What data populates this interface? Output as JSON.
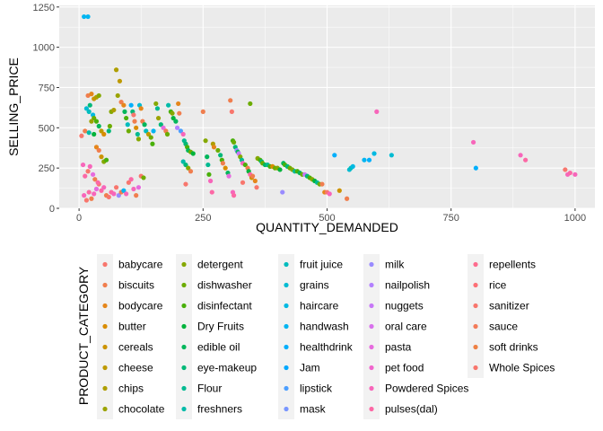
{
  "chart_data": {
    "type": "scatter",
    "title": "",
    "xlabel": "QUANTITY_DEMANDED",
    "ylabel": "SELLING_PRICE",
    "xlim": [
      -40,
      1040
    ],
    "ylim": [
      0,
      1260
    ],
    "xticks": [
      0,
      250,
      500,
      750,
      1000
    ],
    "yticks": [
      0,
      250,
      500,
      750,
      1000,
      1250
    ],
    "grid": true,
    "legend": {
      "title": "PRODUCT_CATEGORY",
      "placement": "bottom",
      "entries": [
        {
          "name": "babycare",
          "color": "#F8766D"
        },
        {
          "name": "biscuits",
          "color": "#F07E4E"
        },
        {
          "name": "bodycare",
          "color": "#E5861B"
        },
        {
          "name": "butter",
          "color": "#D98C00"
        },
        {
          "name": "cereals",
          "color": "#CC9300"
        },
        {
          "name": "cheese",
          "color": "#BE9900"
        },
        {
          "name": "chips",
          "color": "#AE9E00"
        },
        {
          "name": "chocolate",
          "color": "#9BA300"
        },
        {
          "name": "detergent",
          "color": "#85A800"
        },
        {
          "name": "dishwasher",
          "color": "#6CAC00"
        },
        {
          "name": "disinfectant",
          "color": "#49B00A"
        },
        {
          "name": "Dry Fruits",
          "color": "#00B33C"
        },
        {
          "name": "edible oil",
          "color": "#00B65B"
        },
        {
          "name": "eye-makeup",
          "color": "#00B877"
        },
        {
          "name": "Flour",
          "color": "#00BA91"
        },
        {
          "name": "freshners",
          "color": "#00BBA9"
        },
        {
          "name": "fruit juice",
          "color": "#00BCBE"
        },
        {
          "name": "grains",
          "color": "#00BBD2"
        },
        {
          "name": "haircare",
          "color": "#00B9E2"
        },
        {
          "name": "handwash",
          "color": "#00B5F1"
        },
        {
          "name": "healthdrink",
          "color": "#00AFFC"
        },
        {
          "name": "Jam",
          "color": "#00A8FF"
        },
        {
          "name": "lipstick",
          "color": "#4C9FFF"
        },
        {
          "name": "mask",
          "color": "#7996FF"
        },
        {
          "name": "milk",
          "color": "#998BFF"
        },
        {
          "name": "nailpolish",
          "color": "#B381FF"
        },
        {
          "name": "nuggets",
          "color": "#C778F7"
        },
        {
          "name": "oral care",
          "color": "#D871EC"
        },
        {
          "name": "pasta",
          "color": "#E66BDE"
        },
        {
          "name": "pet food",
          "color": "#F066CD"
        },
        {
          "name": "Powdered Spices",
          "color": "#F766BA"
        },
        {
          "name": "pulses(dal)",
          "color": "#FC68A5"
        },
        {
          "name": "repellents",
          "color": "#FE6C8E"
        },
        {
          "name": "rice",
          "color": "#FD7076"
        },
        {
          "name": "sanitizer",
          "color": "#F8766D"
        },
        {
          "name": "sauce",
          "color": "#F37B59"
        },
        {
          "name": "soft drinks",
          "color": "#EE8044"
        },
        {
          "name": "Whole Spices",
          "color": "#F8766D"
        }
      ]
    },
    "points": [
      {
        "x": 10,
        "y": 1190,
        "color": "#00B5F1"
      },
      {
        "x": 18,
        "y": 1190,
        "color": "#00B5F1"
      },
      {
        "x": 5,
        "y": 450,
        "color": "#F8766D"
      },
      {
        "x": 12,
        "y": 480,
        "color": "#F07E4E"
      },
      {
        "x": 18,
        "y": 700,
        "color": "#F07E4E"
      },
      {
        "x": 25,
        "y": 710,
        "color": "#E5861B"
      },
      {
        "x": 30,
        "y": 680,
        "color": "#CC9300"
      },
      {
        "x": 35,
        "y": 690,
        "color": "#AE9E00"
      },
      {
        "x": 40,
        "y": 700,
        "color": "#85A800"
      },
      {
        "x": 15,
        "y": 620,
        "color": "#00BBD2"
      },
      {
        "x": 20,
        "y": 600,
        "color": "#00BCBE"
      },
      {
        "x": 22,
        "y": 640,
        "color": "#00B877"
      },
      {
        "x": 28,
        "y": 580,
        "color": "#00B9E2"
      },
      {
        "x": 30,
        "y": 560,
        "color": "#6CAC00"
      },
      {
        "x": 35,
        "y": 540,
        "color": "#49B00A"
      },
      {
        "x": 25,
        "y": 540,
        "color": "#9BA300"
      },
      {
        "x": 40,
        "y": 510,
        "color": "#00B65B"
      },
      {
        "x": 45,
        "y": 480,
        "color": "#BE9900"
      },
      {
        "x": 50,
        "y": 460,
        "color": "#D98C00"
      },
      {
        "x": 20,
        "y": 470,
        "color": "#00BBA9"
      },
      {
        "x": 30,
        "y": 460,
        "color": "#00B33C"
      },
      {
        "x": 35,
        "y": 380,
        "color": "#E5861B"
      },
      {
        "x": 40,
        "y": 360,
        "color": "#F07E4E"
      },
      {
        "x": 45,
        "y": 320,
        "color": "#CC9300"
      },
      {
        "x": 50,
        "y": 290,
        "color": "#85A800"
      },
      {
        "x": 55,
        "y": 300,
        "color": "#49B00A"
      },
      {
        "x": 60,
        "y": 480,
        "color": "#00B877"
      },
      {
        "x": 62,
        "y": 510,
        "color": "#6CAC00"
      },
      {
        "x": 65,
        "y": 600,
        "color": "#85A800"
      },
      {
        "x": 70,
        "y": 610,
        "color": "#AE9E00"
      },
      {
        "x": 75,
        "y": 860,
        "color": "#AE9E00"
      },
      {
        "x": 78,
        "y": 700,
        "color": "#9BA300"
      },
      {
        "x": 82,
        "y": 790,
        "color": "#BE9900"
      },
      {
        "x": 85,
        "y": 660,
        "color": "#F07E4E"
      },
      {
        "x": 90,
        "y": 640,
        "color": "#E5861B"
      },
      {
        "x": 92,
        "y": 600,
        "color": "#00B65B"
      },
      {
        "x": 95,
        "y": 560,
        "color": "#49B00A"
      },
      {
        "x": 98,
        "y": 520,
        "color": "#00BCBE"
      },
      {
        "x": 100,
        "y": 480,
        "color": "#6CAC00"
      },
      {
        "x": 105,
        "y": 640,
        "color": "#00AFFC"
      },
      {
        "x": 108,
        "y": 600,
        "color": "#00B877"
      },
      {
        "x": 110,
        "y": 580,
        "color": "#F8766D"
      },
      {
        "x": 112,
        "y": 540,
        "color": "#F07E4E"
      },
      {
        "x": 115,
        "y": 500,
        "color": "#D98C00"
      },
      {
        "x": 118,
        "y": 460,
        "color": "#00BA91"
      },
      {
        "x": 120,
        "y": 430,
        "color": "#85A800"
      },
      {
        "x": 122,
        "y": 640,
        "color": "#00BBD2"
      },
      {
        "x": 125,
        "y": 620,
        "color": "#E5861B"
      },
      {
        "x": 128,
        "y": 540,
        "color": "#F07E4E"
      },
      {
        "x": 132,
        "y": 520,
        "color": "#00B65B"
      },
      {
        "x": 135,
        "y": 480,
        "color": "#00BCBE"
      },
      {
        "x": 140,
        "y": 460,
        "color": "#BE9900"
      },
      {
        "x": 145,
        "y": 440,
        "color": "#6CAC00"
      },
      {
        "x": 148,
        "y": 400,
        "color": "#49B00A"
      },
      {
        "x": 150,
        "y": 480,
        "color": "#00B5F1"
      },
      {
        "x": 155,
        "y": 650,
        "color": "#85A800"
      },
      {
        "x": 158,
        "y": 620,
        "color": "#00BA91"
      },
      {
        "x": 160,
        "y": 560,
        "color": "#9BA300"
      },
      {
        "x": 165,
        "y": 520,
        "color": "#00B877"
      },
      {
        "x": 170,
        "y": 500,
        "color": "#E66BDE"
      },
      {
        "x": 175,
        "y": 480,
        "color": "#F07E4E"
      },
      {
        "x": 178,
        "y": 460,
        "color": "#6CAC00"
      },
      {
        "x": 180,
        "y": 640,
        "color": "#00BBA9"
      },
      {
        "x": 185,
        "y": 600,
        "color": "#49B00A"
      },
      {
        "x": 188,
        "y": 590,
        "color": "#85A800"
      },
      {
        "x": 190,
        "y": 560,
        "color": "#00B33C"
      },
      {
        "x": 195,
        "y": 540,
        "color": "#00B65B"
      },
      {
        "x": 198,
        "y": 500,
        "color": "#B381FF"
      },
      {
        "x": 200,
        "y": 650,
        "color": "#E5861B"
      },
      {
        "x": 202,
        "y": 590,
        "color": "#F07E4E"
      },
      {
        "x": 205,
        "y": 480,
        "color": "#4C9FFF"
      },
      {
        "x": 210,
        "y": 460,
        "color": "#F766BA"
      },
      {
        "x": 212,
        "y": 420,
        "color": "#00BA91"
      },
      {
        "x": 215,
        "y": 400,
        "color": "#00B877"
      },
      {
        "x": 218,
        "y": 380,
        "color": "#49B00A"
      },
      {
        "x": 220,
        "y": 360,
        "color": "#00B65B"
      },
      {
        "x": 225,
        "y": 350,
        "color": "#6CAC00"
      },
      {
        "x": 230,
        "y": 340,
        "color": "#00B33C"
      },
      {
        "x": 210,
        "y": 290,
        "color": "#00BBA9"
      },
      {
        "x": 215,
        "y": 270,
        "color": "#00B877"
      },
      {
        "x": 220,
        "y": 250,
        "color": "#85A800"
      },
      {
        "x": 225,
        "y": 230,
        "color": "#F07E4E"
      },
      {
        "x": 215,
        "y": 150,
        "color": "#F8766D"
      },
      {
        "x": 250,
        "y": 600,
        "color": "#F07E4E"
      },
      {
        "x": 255,
        "y": 420,
        "color": "#85A800"
      },
      {
        "x": 258,
        "y": 320,
        "color": "#00B65B"
      },
      {
        "x": 260,
        "y": 270,
        "color": "#00BA91"
      },
      {
        "x": 262,
        "y": 210,
        "color": "#49B00A"
      },
      {
        "x": 265,
        "y": 170,
        "color": "#F766BA"
      },
      {
        "x": 268,
        "y": 100,
        "color": "#FC68A5"
      },
      {
        "x": 270,
        "y": 400,
        "color": "#AE9E00"
      },
      {
        "x": 272,
        "y": 380,
        "color": "#E5861B"
      },
      {
        "x": 280,
        "y": 360,
        "color": "#6CAC00"
      },
      {
        "x": 285,
        "y": 330,
        "color": "#00B877"
      },
      {
        "x": 288,
        "y": 300,
        "color": "#49B00A"
      },
      {
        "x": 290,
        "y": 280,
        "color": "#F07E4E"
      },
      {
        "x": 295,
        "y": 250,
        "color": "#D98C00"
      },
      {
        "x": 300,
        "y": 220,
        "color": "#00B65B"
      },
      {
        "x": 302,
        "y": 200,
        "color": "#E66BDE"
      },
      {
        "x": 305,
        "y": 670,
        "color": "#F07E4E"
      },
      {
        "x": 308,
        "y": 600,
        "color": "#F8766D"
      },
      {
        "x": 310,
        "y": 420,
        "color": "#49B00A"
      },
      {
        "x": 312,
        "y": 410,
        "color": "#6CAC00"
      },
      {
        "x": 315,
        "y": 380,
        "color": "#00B877"
      },
      {
        "x": 318,
        "y": 360,
        "color": "#998BFF"
      },
      {
        "x": 320,
        "y": 350,
        "color": "#00B65B"
      },
      {
        "x": 322,
        "y": 340,
        "color": "#C778F7"
      },
      {
        "x": 325,
        "y": 320,
        "color": "#85A800"
      },
      {
        "x": 328,
        "y": 300,
        "color": "#00BA91"
      },
      {
        "x": 330,
        "y": 280,
        "color": "#F766BA"
      },
      {
        "x": 335,
        "y": 270,
        "color": "#49B00A"
      },
      {
        "x": 340,
        "y": 250,
        "color": "#F07E4E"
      },
      {
        "x": 342,
        "y": 230,
        "color": "#00B33C"
      },
      {
        "x": 345,
        "y": 210,
        "color": "#FC68A5"
      },
      {
        "x": 348,
        "y": 190,
        "color": "#CC9300"
      },
      {
        "x": 310,
        "y": 100,
        "color": "#F766BA"
      },
      {
        "x": 312,
        "y": 80,
        "color": "#FC68A5"
      },
      {
        "x": 330,
        "y": 160,
        "color": "#F8766D"
      },
      {
        "x": 345,
        "y": 650,
        "color": "#6CAC00"
      },
      {
        "x": 350,
        "y": 200,
        "color": "#F07E4E"
      },
      {
        "x": 355,
        "y": 170,
        "color": "#E5861B"
      },
      {
        "x": 358,
        "y": 130,
        "color": "#F8766D"
      },
      {
        "x": 360,
        "y": 310,
        "color": "#85A800"
      },
      {
        "x": 365,
        "y": 300,
        "color": "#49B00A"
      },
      {
        "x": 368,
        "y": 290,
        "color": "#00B877"
      },
      {
        "x": 370,
        "y": 280,
        "color": "#6CAC00"
      },
      {
        "x": 375,
        "y": 270,
        "color": "#00B65B"
      },
      {
        "x": 380,
        "y": 270,
        "color": "#00BA91"
      },
      {
        "x": 385,
        "y": 260,
        "color": "#49B00A"
      },
      {
        "x": 390,
        "y": 260,
        "color": "#D98C00"
      },
      {
        "x": 395,
        "y": 250,
        "color": "#6CAC00"
      },
      {
        "x": 400,
        "y": 250,
        "color": "#85A800"
      },
      {
        "x": 405,
        "y": 240,
        "color": "#00B33C"
      },
      {
        "x": 410,
        "y": 100,
        "color": "#998BFF"
      },
      {
        "x": 412,
        "y": 280,
        "color": "#00B65B"
      },
      {
        "x": 415,
        "y": 270,
        "color": "#49B00A"
      },
      {
        "x": 420,
        "y": 260,
        "color": "#00B877"
      },
      {
        "x": 425,
        "y": 250,
        "color": "#6CAC00"
      },
      {
        "x": 430,
        "y": 240,
        "color": "#85A800"
      },
      {
        "x": 435,
        "y": 230,
        "color": "#00BA91"
      },
      {
        "x": 440,
        "y": 230,
        "color": "#49B00A"
      },
      {
        "x": 445,
        "y": 220,
        "color": "#00B65B"
      },
      {
        "x": 450,
        "y": 210,
        "color": "#6CAC00"
      },
      {
        "x": 455,
        "y": 210,
        "color": "#C778F7"
      },
      {
        "x": 460,
        "y": 200,
        "color": "#00B877"
      },
      {
        "x": 465,
        "y": 190,
        "color": "#49B00A"
      },
      {
        "x": 470,
        "y": 180,
        "color": "#85A800"
      },
      {
        "x": 475,
        "y": 170,
        "color": "#00B33C"
      },
      {
        "x": 480,
        "y": 160,
        "color": "#00BA91"
      },
      {
        "x": 485,
        "y": 150,
        "color": "#6CAC00"
      },
      {
        "x": 490,
        "y": 150,
        "color": "#F07E4E"
      },
      {
        "x": 495,
        "y": 100,
        "color": "#E5861B"
      },
      {
        "x": 500,
        "y": 100,
        "color": "#F8766D"
      },
      {
        "x": 505,
        "y": 90,
        "color": "#F766BA"
      },
      {
        "x": 515,
        "y": 330,
        "color": "#00AFFC"
      },
      {
        "x": 525,
        "y": 110,
        "color": "#CC9300"
      },
      {
        "x": 540,
        "y": 60,
        "color": "#F07E4E"
      },
      {
        "x": 545,
        "y": 240,
        "color": "#00BBD2"
      },
      {
        "x": 548,
        "y": 250,
        "color": "#00BCBE"
      },
      {
        "x": 552,
        "y": 260,
        "color": "#00B9E2"
      },
      {
        "x": 575,
        "y": 300,
        "color": "#00B5F1"
      },
      {
        "x": 585,
        "y": 300,
        "color": "#00AFFC"
      },
      {
        "x": 595,
        "y": 340,
        "color": "#00B9E2"
      },
      {
        "x": 600,
        "y": 600,
        "color": "#F766BA"
      },
      {
        "x": 630,
        "y": 330,
        "color": "#00BBD2"
      },
      {
        "x": 795,
        "y": 410,
        "color": "#F766BA"
      },
      {
        "x": 800,
        "y": 250,
        "color": "#00AFFC"
      },
      {
        "x": 890,
        "y": 330,
        "color": "#F766BA"
      },
      {
        "x": 900,
        "y": 300,
        "color": "#FC68A5"
      },
      {
        "x": 980,
        "y": 240,
        "color": "#F8766D"
      },
      {
        "x": 985,
        "y": 210,
        "color": "#F766BA"
      },
      {
        "x": 990,
        "y": 220,
        "color": "#FC68A5"
      },
      {
        "x": 1000,
        "y": 210,
        "color": "#F766BA"
      },
      {
        "x": 10,
        "y": 80,
        "color": "#F766BA"
      },
      {
        "x": 15,
        "y": 50,
        "color": "#F8766D"
      },
      {
        "x": 20,
        "y": 100,
        "color": "#FC68A5"
      },
      {
        "x": 25,
        "y": 60,
        "color": "#F07E4E"
      },
      {
        "x": 30,
        "y": 90,
        "color": "#F766BA"
      },
      {
        "x": 35,
        "y": 120,
        "color": "#E66BDE"
      },
      {
        "x": 40,
        "y": 150,
        "color": "#F8766D"
      },
      {
        "x": 45,
        "y": 110,
        "color": "#FC68A5"
      },
      {
        "x": 50,
        "y": 130,
        "color": "#F766BA"
      },
      {
        "x": 55,
        "y": 80,
        "color": "#F07E4E"
      },
      {
        "x": 60,
        "y": 70,
        "color": "#F8766D"
      },
      {
        "x": 65,
        "y": 100,
        "color": "#FC68A5"
      },
      {
        "x": 70,
        "y": 90,
        "color": "#F766BA"
      },
      {
        "x": 75,
        "y": 130,
        "color": "#F8766D"
      },
      {
        "x": 80,
        "y": 80,
        "color": "#998BFF"
      },
      {
        "x": 85,
        "y": 100,
        "color": "#F07E4E"
      },
      {
        "x": 90,
        "y": 110,
        "color": "#00B5F1"
      },
      {
        "x": 95,
        "y": 90,
        "color": "#F766BA"
      },
      {
        "x": 100,
        "y": 160,
        "color": "#F8766D"
      },
      {
        "x": 105,
        "y": 180,
        "color": "#FC68A5"
      },
      {
        "x": 110,
        "y": 120,
        "color": "#F766BA"
      },
      {
        "x": 115,
        "y": 80,
        "color": "#F07E4E"
      },
      {
        "x": 120,
        "y": 130,
        "color": "#E66BDE"
      },
      {
        "x": 125,
        "y": 200,
        "color": "#F8766D"
      },
      {
        "x": 130,
        "y": 190,
        "color": "#6CAC00"
      },
      {
        "x": 8,
        "y": 270,
        "color": "#F766BA"
      },
      {
        "x": 12,
        "y": 200,
        "color": "#FC68A5"
      },
      {
        "x": 18,
        "y": 230,
        "color": "#F8766D"
      },
      {
        "x": 22,
        "y": 260,
        "color": "#F766BA"
      },
      {
        "x": 28,
        "y": 210,
        "color": "#E66BDE"
      },
      {
        "x": 32,
        "y": 180,
        "color": "#F07E4E"
      },
      {
        "x": 38,
        "y": 160,
        "color": "#FC68A5"
      }
    ]
  }
}
